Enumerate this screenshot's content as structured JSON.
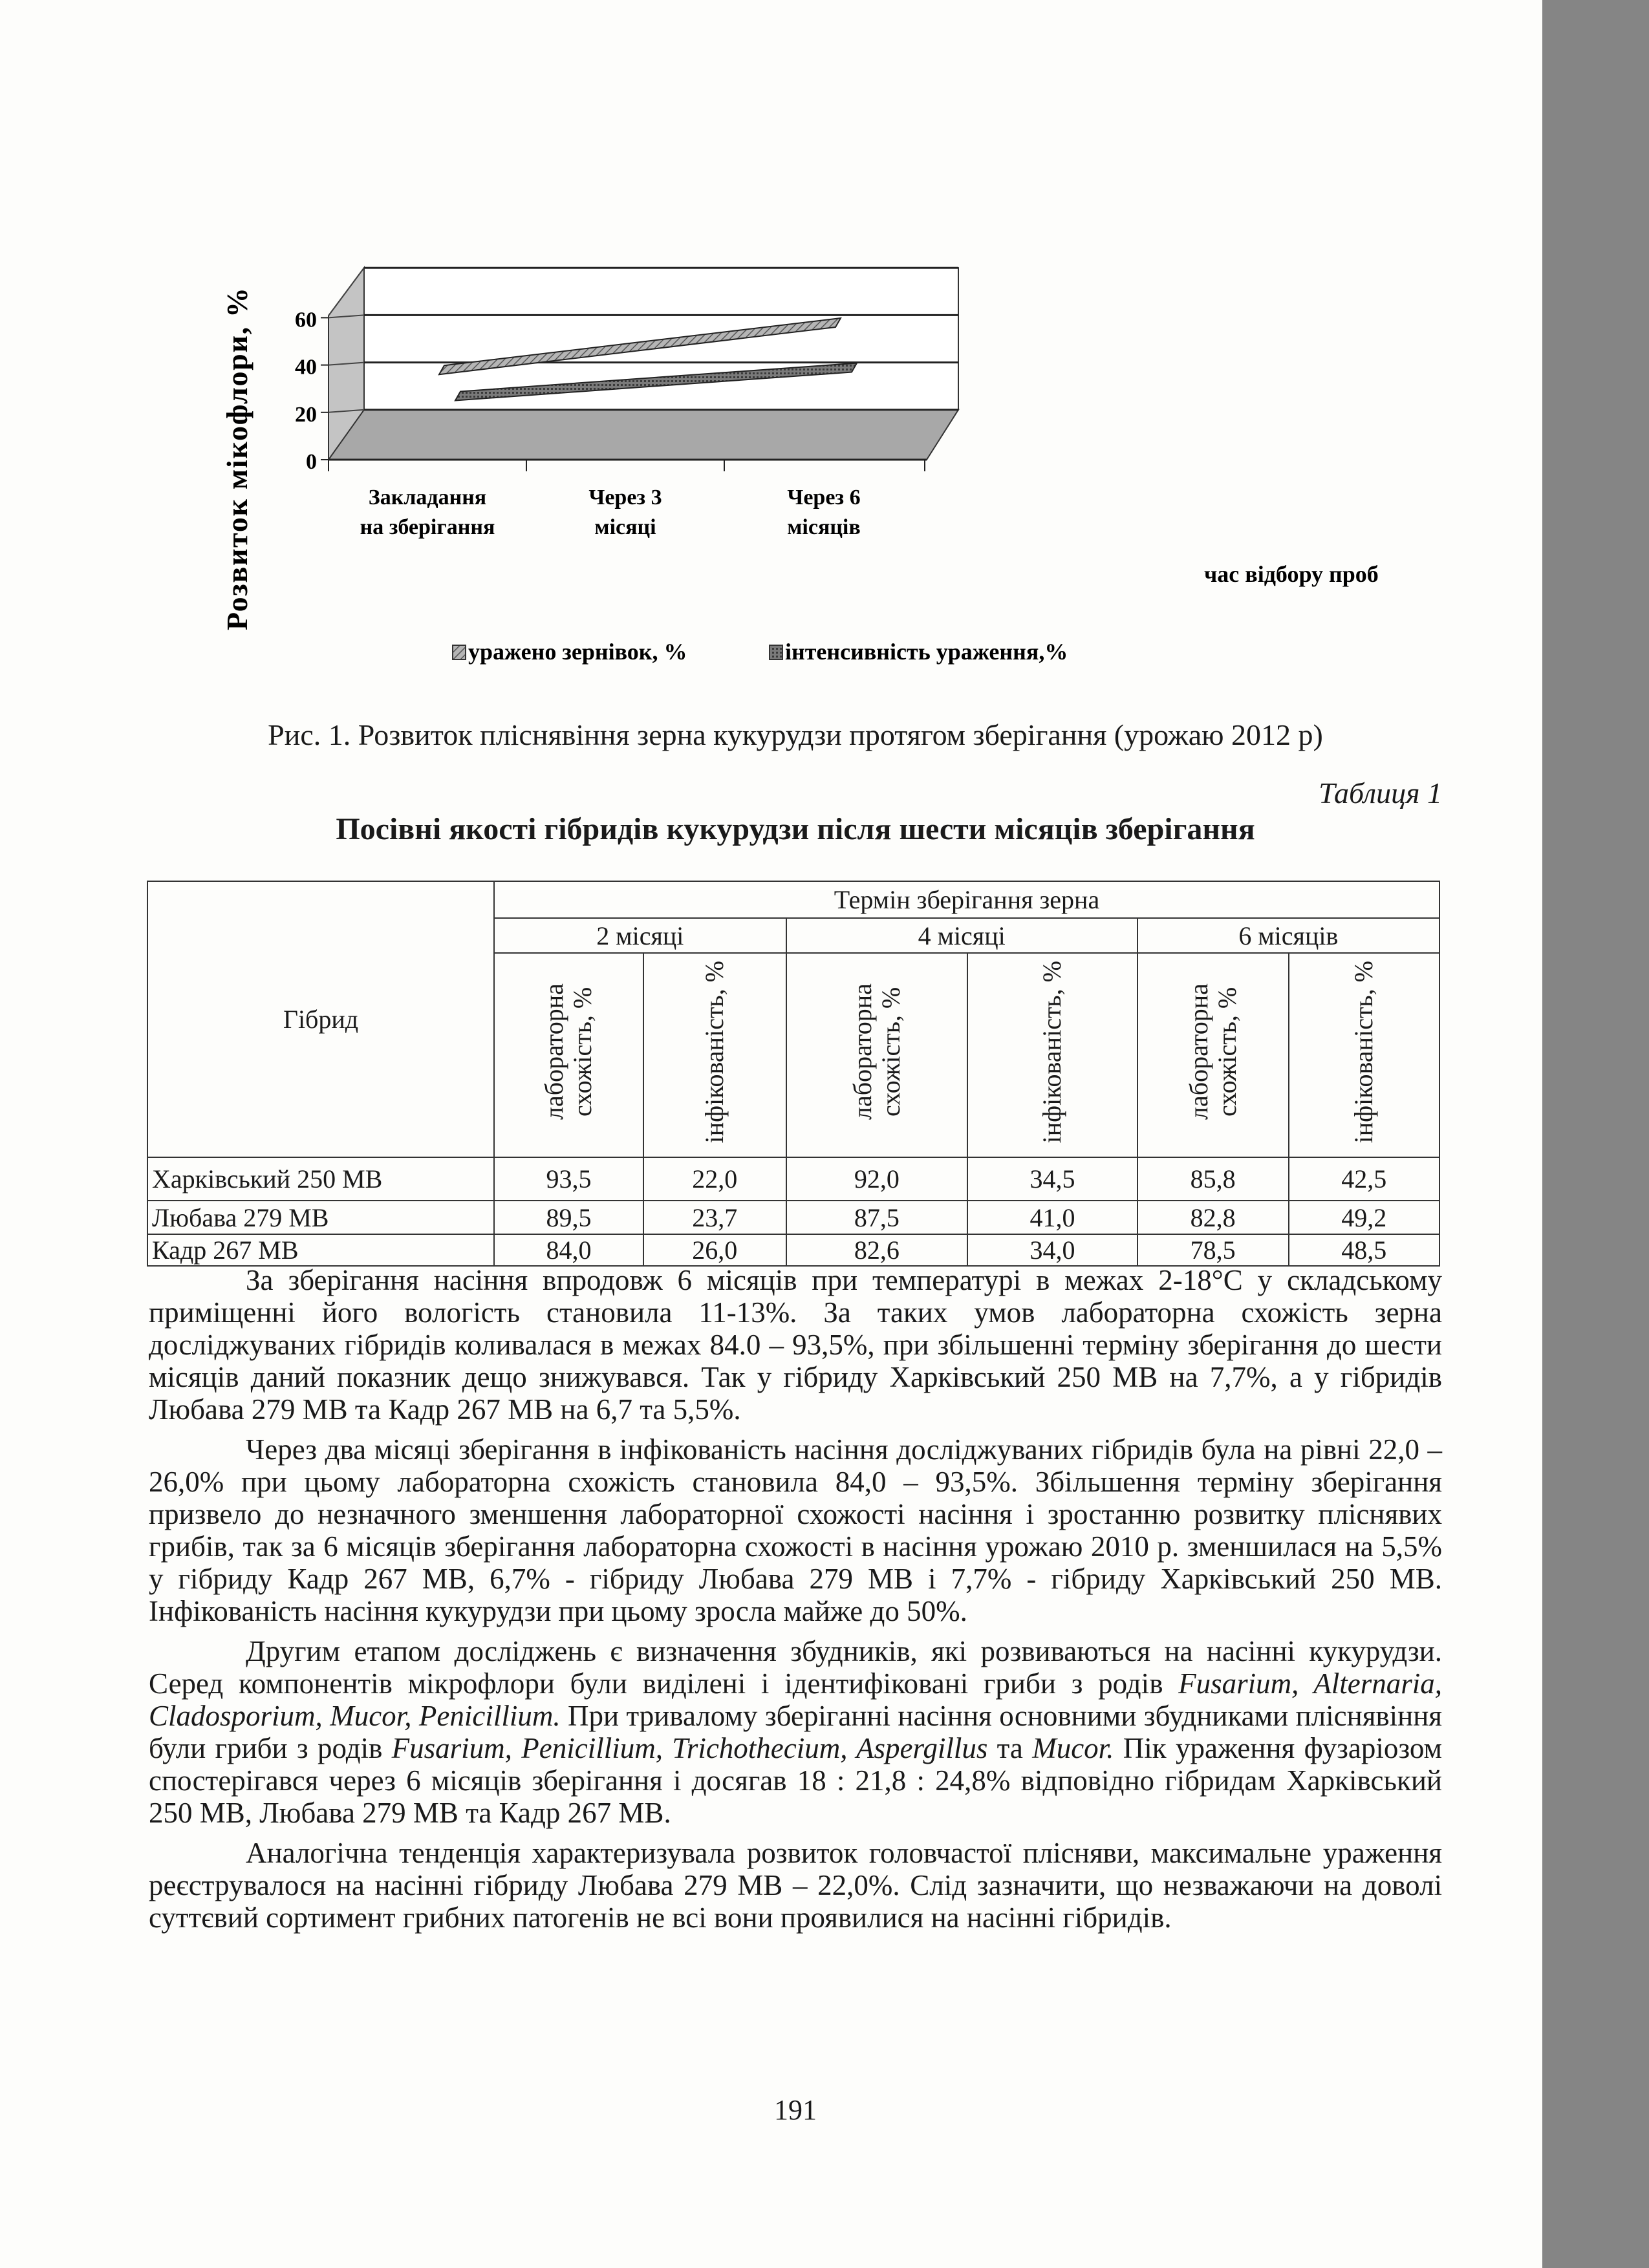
{
  "chart_data": {
    "type": "line",
    "style": "3d-ribbon",
    "categories": [
      "Закладання на зберігання",
      "Через 3 місяці",
      "Через 6 місяців"
    ],
    "category_lines": [
      [
        "Закладання",
        "на зберігання"
      ],
      [
        "Через 3",
        "місяці"
      ],
      [
        "Через 6",
        "місяців"
      ]
    ],
    "series": [
      {
        "name": "уражено зернівок, %",
        "values": [
          36,
          46,
          56
        ],
        "pattern": "hatched"
      },
      {
        "name": "інтенсивність ураження,%",
        "values": [
          25,
          31,
          37
        ],
        "pattern": "dark"
      }
    ],
    "ylabel": "Розвиток мікофлори, %",
    "xlabel": "час відбору проб",
    "yticks": [
      0,
      20,
      40,
      60
    ],
    "ylim": [
      0,
      80
    ],
    "grid": true,
    "legend": "bottom",
    "colors": {
      "floor": "#a8a8a8",
      "wall": "#ffffff",
      "series1": "#9a9a9a",
      "series2": "#6e6e6e"
    }
  },
  "figure_caption": "Рис. 1. Розвиток пліснявіння зерна кукурудзи протягом зберігання (урожаю 2012 р)",
  "table": {
    "label": "Таблиця 1",
    "title": "Посівні якості гібридів кукурудзи після шести місяців зберігання",
    "header_hybrid": "Гібрид",
    "header_group": "Термін зберігання зерна",
    "periods": [
      "2 місяці",
      "4 місяці",
      "6 місяців"
    ],
    "subcols": [
      "лабораторна схожість, %",
      "інфікованість, %"
    ],
    "rows": [
      {
        "name": "Харківський 250 МВ",
        "values": [
          "93,5",
          "22,0",
          "92,0",
          "34,5",
          "85,8",
          "42,5"
        ]
      },
      {
        "name": "Любава 279 МВ",
        "values": [
          "89,5",
          "23,7",
          "87,5",
          "41,0",
          "82,8",
          "49,2"
        ]
      },
      {
        "name": "Кадр 267 МВ",
        "values": [
          "84,0",
          "26,0",
          "82,6",
          "34,0",
          "78,5",
          "48,5"
        ]
      }
    ]
  },
  "paragraphs": [
    [
      {
        "t": "За зберігання насіння впродовж 6 місяців при температурі в межах 2-18°С у складському приміщенні його вологість становила 11-13%. За таких умов лабораторна схожість зерна досліджуваних гібридів коливалася в межах 84.0 – 93,5%, при збільшенні терміну зберігання до шести місяців даний показник дещо знижувався. Так у гібриду Харківський 250 МВ на 7,7%, а у гібридів Любава 279 МВ та Кадр 267 МВ на 6,7 та 5,5%."
      }
    ],
    [
      {
        "t": "Через два місяці зберігання в інфікованість насіння досліджуваних гібридів була на рівні 22,0 – 26,0% при цьому лабораторна схожість становила 84,0 – 93,5%. Збільшення терміну зберігання призвело до незначного зменшення лабораторної схожості насіння і зростанню розвитку пліснявих грибів, так за 6 місяців зберігання лабораторна схожості в насіння урожаю 2010 р. зменшилася на 5,5% у гібриду Кадр 267 МВ, 6,7% - гібриду Любава 279 МВ і 7,7% - гібриду Харківський 250 МВ. Інфікованість насіння кукурудзи при цьому зросла майже до 50%."
      }
    ],
    [
      {
        "t": "Другим етапом досліджень є визначення збудників, які розвиваються на насінні кукурудзи. Серед компонентів мікрофлори були виділені і ідентифіковані гриби з родів "
      },
      {
        "t": "Fusarium, Alternaria, Cladosporium, Mucor, Penicillium.",
        "i": true
      },
      {
        "t": " При тривалому зберіганні насіння основними збудниками пліснявіння були гриби з родів "
      },
      {
        "t": "Fusarium, Penicillium, Trichothecium, Aspergillus",
        "i": true
      },
      {
        "t": " та "
      },
      {
        "t": "Mucor.",
        "i": true
      },
      {
        "t": " Пік ураження фузаріозом спостерігався через 6 місяців зберігання і досягав 18 : 21,8 : 24,8% відповідно гібридам Харківський 250 МВ, Любава 279 МВ та Кадр 267 МВ."
      }
    ],
    [
      {
        "t": "Аналогічна тенденція характеризувала розвиток головчастої плісняви, максимальне ураження реєструвалося на насінні гібриду Любава 279 МВ – 22,0%. Слід зазначити, що незважаючи на доволі суттєвий сортимент грибних патогенів не всі вони проявилися на насінні гібридів."
      }
    ]
  ],
  "page_number": "191"
}
